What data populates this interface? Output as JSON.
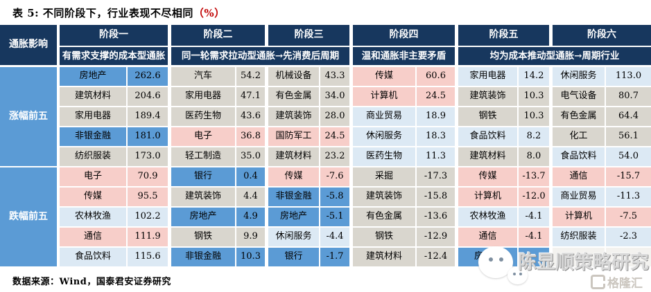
{
  "title": {
    "part1": "表 5:  不同阶段下，行业表现不尽相同",
    "part2": "（%）"
  },
  "colors": {
    "header_navy": "#17375E",
    "cell_blue": "#5B9BD5",
    "cell_gray": "#D9D6CE",
    "cell_pink": "#F7CEC9",
    "cell_light_blue": "#DCE9F4",
    "title_percent_red": "#C00000"
  },
  "table": {
    "corner_label": "通胀影响",
    "row_groups": [
      "涨幅前五",
      "跌幅前五"
    ],
    "subheaders": [
      "有需求支撑的成本型通胀",
      "同一轮需求拉动型通胀→先消费后周期",
      "温和通胀非主要矛盾",
      "均为成本推动型通胀→周期行业"
    ],
    "stages": [
      {
        "name": "阶段一",
        "rows": [
          {
            "industry": "房地产",
            "value": "262.6",
            "color": "blue"
          },
          {
            "industry": "建筑材料",
            "value": "204.6",
            "color": "gray"
          },
          {
            "industry": "家用电器",
            "value": "189.4",
            "color": "gray"
          },
          {
            "industry": "非银金融",
            "value": "181.0",
            "color": "blue"
          },
          {
            "industry": "纺织服装",
            "value": "173.0",
            "color": "gray"
          },
          {
            "industry": "电子",
            "value": "70.9",
            "color": "pink"
          },
          {
            "industry": "传媒",
            "value": "95.5",
            "color": "pink"
          },
          {
            "industry": "农林牧渔",
            "value": "102.2",
            "color": "lblue"
          },
          {
            "industry": "通信",
            "value": "111.9",
            "color": "pink"
          },
          {
            "industry": "食品饮料",
            "value": "115.6",
            "color": "lblue"
          }
        ]
      },
      {
        "name": "阶段二",
        "rows": [
          {
            "industry": "汽车",
            "value": "54.2",
            "color": "gray"
          },
          {
            "industry": "家用电器",
            "value": "47.1",
            "color": "gray"
          },
          {
            "industry": "医药生物",
            "value": "43.6",
            "color": "gray"
          },
          {
            "industry": "电子",
            "value": "36.8",
            "color": "pink"
          },
          {
            "industry": "轻工制造",
            "value": "35.0",
            "color": "gray"
          },
          {
            "industry": "银行",
            "value": "0.4",
            "color": "blue"
          },
          {
            "industry": "建筑装饰",
            "value": "4.4",
            "color": "gray"
          },
          {
            "industry": "房地产",
            "value": "4.9",
            "color": "blue"
          },
          {
            "industry": "钢铁",
            "value": "9.9",
            "color": "gray"
          },
          {
            "industry": "非银金融",
            "value": "10.3",
            "color": "blue"
          }
        ]
      },
      {
        "name": "阶段三",
        "rows": [
          {
            "industry": "机械设备",
            "value": "43.3",
            "color": "gray"
          },
          {
            "industry": "有色金属",
            "value": "34.0",
            "color": "gray"
          },
          {
            "industry": "建筑装饰",
            "value": "28.0",
            "color": "gray"
          },
          {
            "industry": "国防军工",
            "value": "24.5",
            "color": "pink"
          },
          {
            "industry": "建筑材料",
            "value": "23.2",
            "color": "gray"
          },
          {
            "industry": "传媒",
            "value": "-7.6",
            "color": "pink"
          },
          {
            "industry": "非银金融",
            "value": "-5.8",
            "color": "blue"
          },
          {
            "industry": "房地产",
            "value": "-5.1",
            "color": "blue"
          },
          {
            "industry": "休闲服务",
            "value": "-4.4",
            "color": "lblue"
          },
          {
            "industry": "银行",
            "value": "-1.7",
            "color": "blue"
          }
        ]
      },
      {
        "name": "阶段四",
        "rows": [
          {
            "industry": "传媒",
            "value": "60.6",
            "color": "pink"
          },
          {
            "industry": "计算机",
            "value": "24.5",
            "color": "pink"
          },
          {
            "industry": "商业贸易",
            "value": "18.9",
            "color": "lblue"
          },
          {
            "industry": "休闲服务",
            "value": "18.3",
            "color": "lblue"
          },
          {
            "industry": "医药生物",
            "value": "11.3",
            "color": "lblue"
          },
          {
            "industry": "采掘",
            "value": "-17.3",
            "color": "gray"
          },
          {
            "industry": "建筑装饰",
            "value": "-15.8",
            "color": "gray"
          },
          {
            "industry": "有色金属",
            "value": "-13.6",
            "color": "gray"
          },
          {
            "industry": "钢铁",
            "value": "-12.9",
            "color": "gray"
          },
          {
            "industry": "建筑材料",
            "value": "-12.4",
            "color": "gray"
          }
        ]
      },
      {
        "name": "阶段五",
        "rows": [
          {
            "industry": "家用电器",
            "value": "14.2",
            "color": "lblue"
          },
          {
            "industry": "建筑装饰",
            "value": "10.3",
            "color": "gray"
          },
          {
            "industry": "钢铁",
            "value": "10.3",
            "color": "gray"
          },
          {
            "industry": "食品饮料",
            "value": "8.2",
            "color": "lblue"
          },
          {
            "industry": "建筑材料",
            "value": "8.0",
            "color": "gray"
          },
          {
            "industry": "传媒",
            "value": "-13.7",
            "color": "pink"
          },
          {
            "industry": "计算机",
            "value": "-12.0",
            "color": "pink"
          },
          {
            "industry": "农林牧渔",
            "value": "-4.1",
            "color": "lblue"
          },
          {
            "industry": "通信",
            "value": "-4.1",
            "color": "pink"
          },
          {
            "industry": "房地产",
            "value": "",
            "color": "blue"
          }
        ]
      },
      {
        "name": "阶段六",
        "rows": [
          {
            "industry": "休闲服务",
            "value": "113.0",
            "color": "lblue"
          },
          {
            "industry": "电气设备",
            "value": "80.7",
            "color": "gray"
          },
          {
            "industry": "有色金属",
            "value": "64.4",
            "color": "gray"
          },
          {
            "industry": "化工",
            "value": "56.1",
            "color": "gray"
          },
          {
            "industry": "食品饮料",
            "value": "54.0",
            "color": "lblue"
          },
          {
            "industry": "通信",
            "value": "-15.7",
            "color": "pink"
          },
          {
            "industry": "商业贸易",
            "value": "-11.3",
            "color": "lblue"
          },
          {
            "industry": "计算机",
            "value": "-7.5",
            "color": "pink"
          },
          {
            "industry": "纺织服装",
            "value": "-2.3",
            "color": "lblue"
          },
          {
            "industry": "",
            "value": "",
            "color": "hidden"
          }
        ]
      }
    ]
  },
  "footer": {
    "source": "数据来源：Wind，国泰君安证券研究"
  },
  "watermark": {
    "text": "陈显顺策略研究",
    "logo_text": "格隆汇"
  }
}
